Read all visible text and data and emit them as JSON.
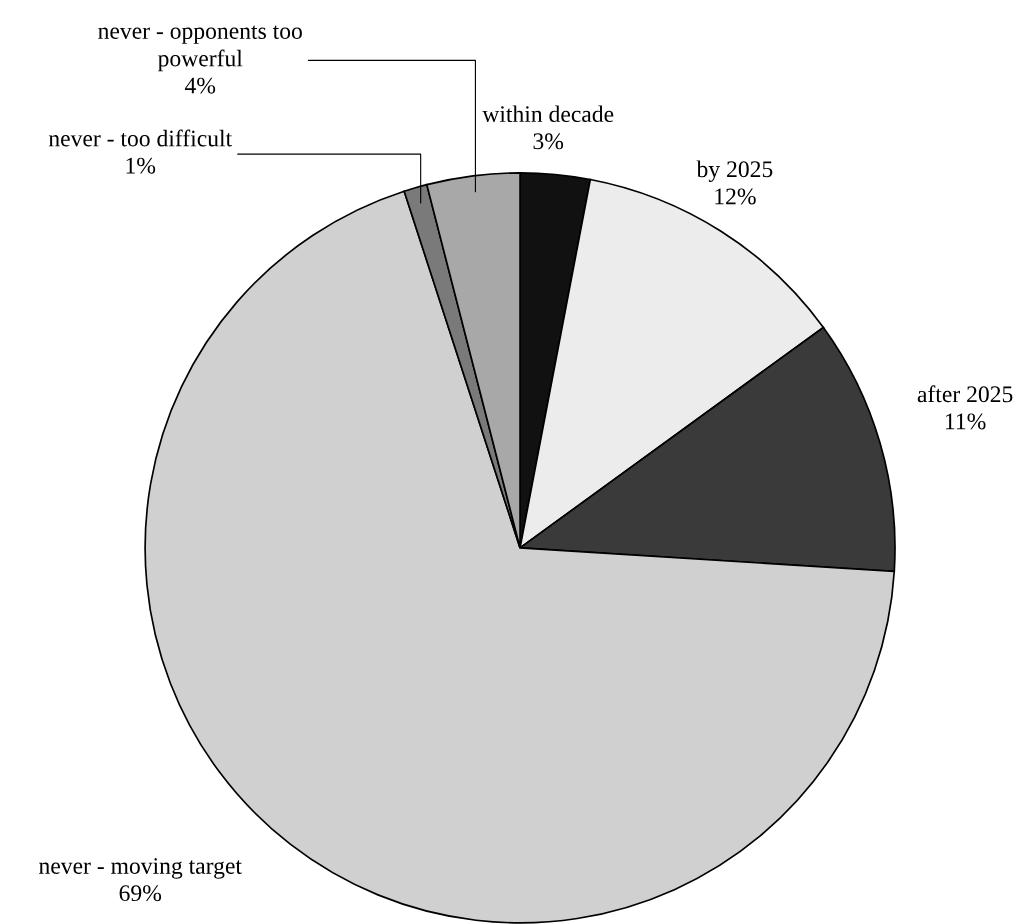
{
  "chart_data": {
    "type": "pie",
    "categories": [
      "within decade",
      "by 2025",
      "after 2025",
      "never - moving target",
      "never - too difficult",
      "never - opponents too powerful"
    ],
    "values": [
      3,
      12,
      11,
      69,
      1,
      4
    ],
    "value_labels": [
      "3%",
      "12%",
      "11%",
      "69%",
      "1%",
      "4%"
    ],
    "colors": [
      "#111111",
      "#ececec",
      "#3a3a3a",
      "#d0d0d0",
      "#7a7a7a",
      "#a8a8a8"
    ]
  }
}
